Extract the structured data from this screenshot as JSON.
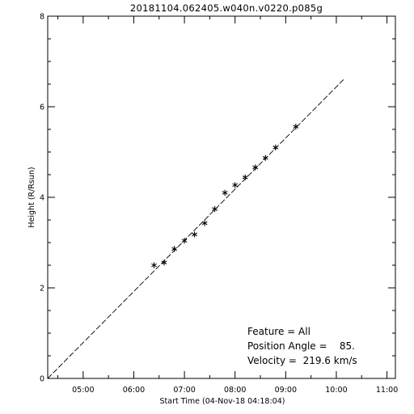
{
  "chart_data": {
    "type": "scatter",
    "title": "20181104.062405.w040n.v0220.p085g",
    "xlabel": "Start Time (04-Nov-18 04:18:04)",
    "ylabel": "Height (R/Rsun)",
    "x_unit": "time of day (hours, 04-Nov-2018)",
    "xlim": [
      "04:18",
      "11:10"
    ],
    "ylim": [
      0,
      8
    ],
    "x_ticks": [
      {
        "label": "05:00",
        "hour": 5
      },
      {
        "label": "06:00",
        "hour": 6
      },
      {
        "label": "07:00",
        "hour": 7
      },
      {
        "label": "08:00",
        "hour": 8
      },
      {
        "label": "09:00",
        "hour": 9
      },
      {
        "label": "10:00",
        "hour": 10
      },
      {
        "label": "11:00",
        "hour": 11
      }
    ],
    "y_ticks": [
      {
        "label": "0",
        "value": 0
      },
      {
        "label": "2",
        "value": 2
      },
      {
        "label": "4",
        "value": 4
      },
      {
        "label": "6",
        "value": 6
      },
      {
        "label": "8",
        "value": 8
      }
    ],
    "grid": false,
    "legend": "none",
    "series": [
      {
        "kind": "points",
        "marker": "asterisk",
        "x": [
          "06:24",
          "06:36",
          "06:48",
          "07:00",
          "07:12",
          "07:24",
          "07:36",
          "07:48",
          "08:00",
          "08:12",
          "08:24",
          "08:36",
          "08:48",
          "09:12"
        ],
        "x_hours": [
          6.4,
          6.6,
          6.8,
          7.0,
          7.2,
          7.4,
          7.6,
          7.8,
          8.0,
          8.2,
          8.4,
          8.6,
          8.8,
          9.2
        ],
        "y": [
          2.5,
          2.56,
          2.86,
          3.04,
          3.18,
          3.43,
          3.74,
          4.1,
          4.27,
          4.44,
          4.66,
          4.87,
          5.1,
          5.56
        ]
      },
      {
        "kind": "fit-line",
        "x": [
          "04:18",
          "10:10"
        ],
        "x_hours": [
          4.3,
          10.17
        ],
        "y": [
          0.0,
          6.63
        ]
      }
    ],
    "annotations": {
      "feature_label": "Feature = All",
      "position_angle_label": "Position Angle =    85.",
      "velocity_label": "Velocity =  219.6 km/s"
    }
  }
}
